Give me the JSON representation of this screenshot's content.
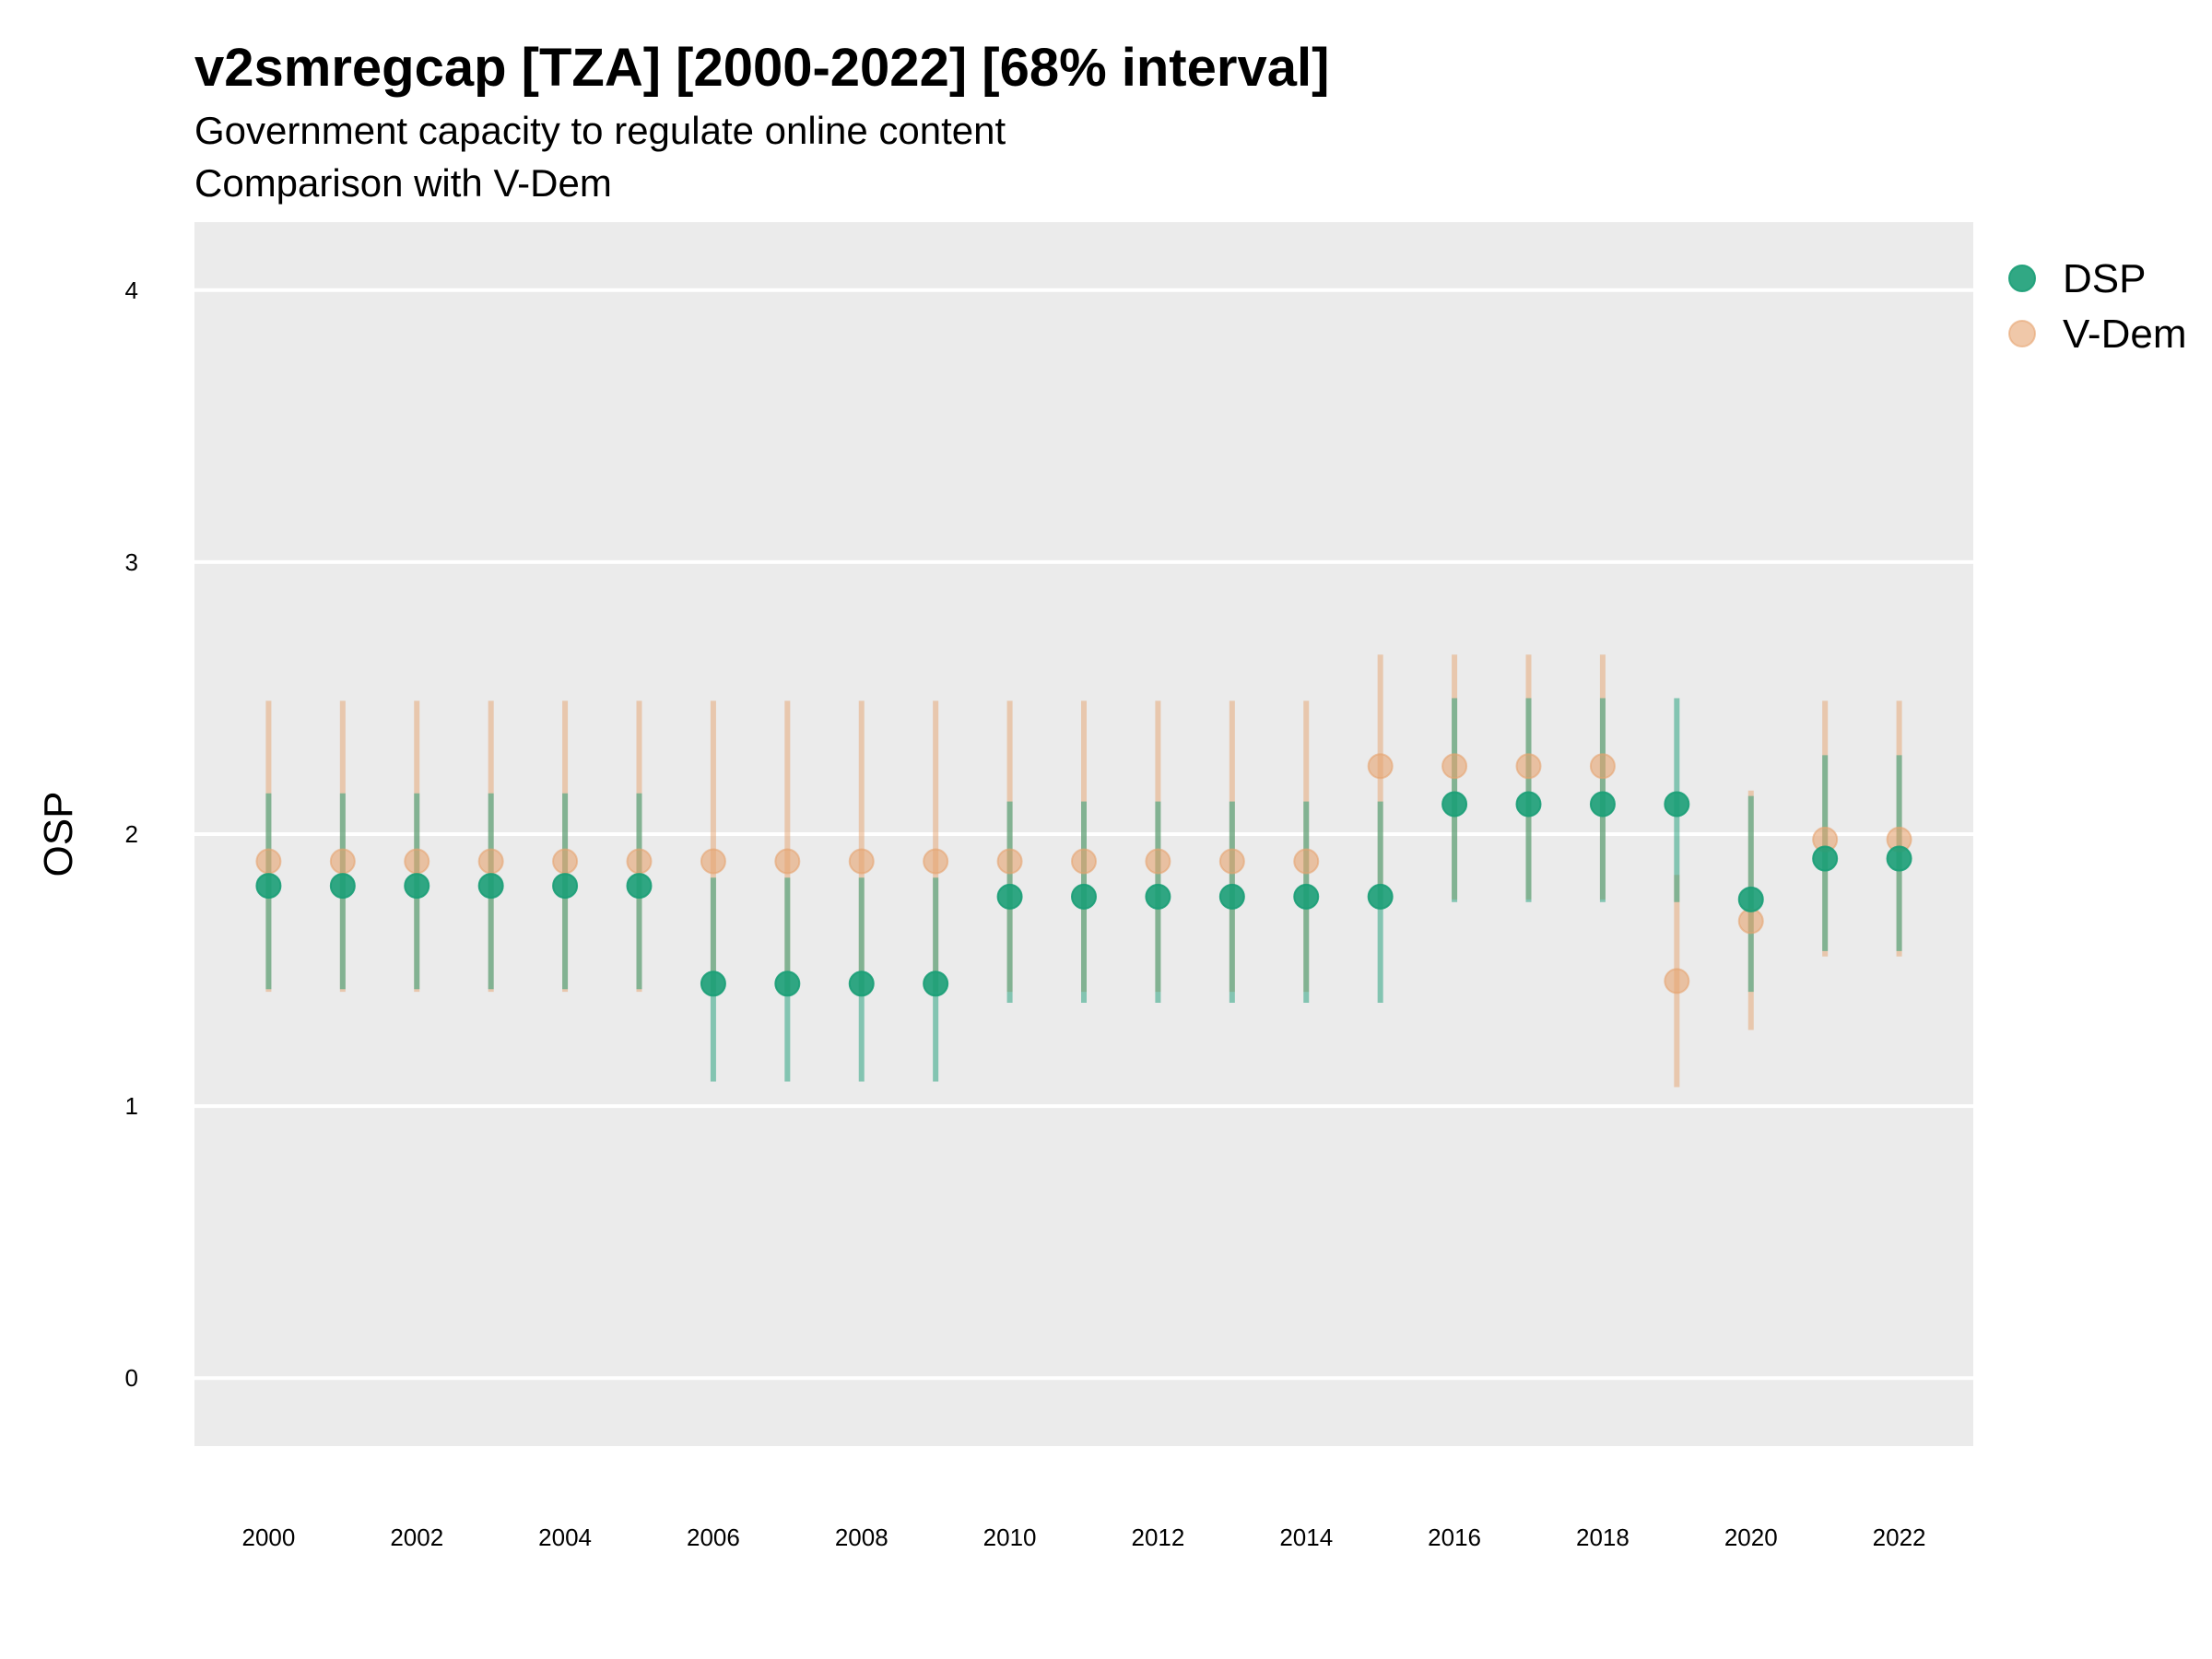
{
  "chart_data": {
    "type": "scatter",
    "title": "v2smregcap [TZA] [2000-2022] [68% interval]",
    "subtitle_lines": [
      "Government capacity to regulate online content",
      "Comparison with V-Dem"
    ],
    "xlabel": "",
    "ylabel": "OSP",
    "x_ticks": [
      "2000",
      "2002",
      "2004",
      "2006",
      "2008",
      "2010",
      "2012",
      "2014",
      "2016",
      "2018",
      "2020",
      "2022"
    ],
    "y_ticks": [
      "0",
      "1",
      "2",
      "3",
      "4"
    ],
    "xlim": [
      1999,
      2023
    ],
    "ylim": [
      -0.25,
      4.25
    ],
    "grid": true,
    "legend_position": "right",
    "x": [
      2000,
      2001,
      2002,
      2003,
      2004,
      2005,
      2006,
      2007,
      2008,
      2009,
      2010,
      2011,
      2012,
      2013,
      2014,
      2015,
      2016,
      2017,
      2018,
      2019,
      2020,
      2021,
      2022
    ],
    "series": [
      {
        "name": "V-Dem",
        "color": "#E6A36F",
        "values": [
          1.9,
          1.9,
          1.9,
          1.9,
          1.9,
          1.9,
          1.9,
          1.9,
          1.9,
          1.9,
          1.9,
          1.9,
          1.9,
          1.9,
          1.9,
          2.25,
          2.25,
          2.25,
          2.25,
          1.46,
          1.68,
          1.98,
          1.98
        ],
        "lower": [
          1.42,
          1.42,
          1.42,
          1.42,
          1.42,
          1.42,
          1.42,
          1.42,
          1.42,
          1.42,
          1.42,
          1.42,
          1.42,
          1.42,
          1.42,
          1.76,
          1.76,
          1.76,
          1.76,
          1.07,
          1.28,
          1.55,
          1.55
        ],
        "upper": [
          2.49,
          2.49,
          2.49,
          2.49,
          2.49,
          2.49,
          2.49,
          2.49,
          2.49,
          2.49,
          2.49,
          2.49,
          2.49,
          2.49,
          2.49,
          2.66,
          2.66,
          2.66,
          2.66,
          1.85,
          2.16,
          2.49,
          2.49
        ]
      },
      {
        "name": "DSP",
        "color": "#1B9E77",
        "values": [
          1.81,
          1.81,
          1.81,
          1.81,
          1.81,
          1.81,
          1.45,
          1.45,
          1.45,
          1.45,
          1.77,
          1.77,
          1.77,
          1.77,
          1.77,
          1.77,
          2.11,
          2.11,
          2.11,
          2.11,
          1.76,
          1.91,
          1.91
        ],
        "lower": [
          1.43,
          1.43,
          1.43,
          1.43,
          1.43,
          1.43,
          1.09,
          1.09,
          1.09,
          1.09,
          1.38,
          1.38,
          1.38,
          1.38,
          1.38,
          1.38,
          1.75,
          1.75,
          1.75,
          1.75,
          1.42,
          1.57,
          1.57
        ],
        "upper": [
          2.15,
          2.15,
          2.15,
          2.15,
          2.15,
          2.15,
          1.84,
          1.84,
          1.84,
          1.84,
          2.12,
          2.12,
          2.12,
          2.12,
          2.12,
          2.12,
          2.5,
          2.5,
          2.5,
          2.5,
          2.14,
          2.29,
          2.29
        ]
      }
    ],
    "legend": [
      "DSP",
      "V-Dem"
    ]
  }
}
